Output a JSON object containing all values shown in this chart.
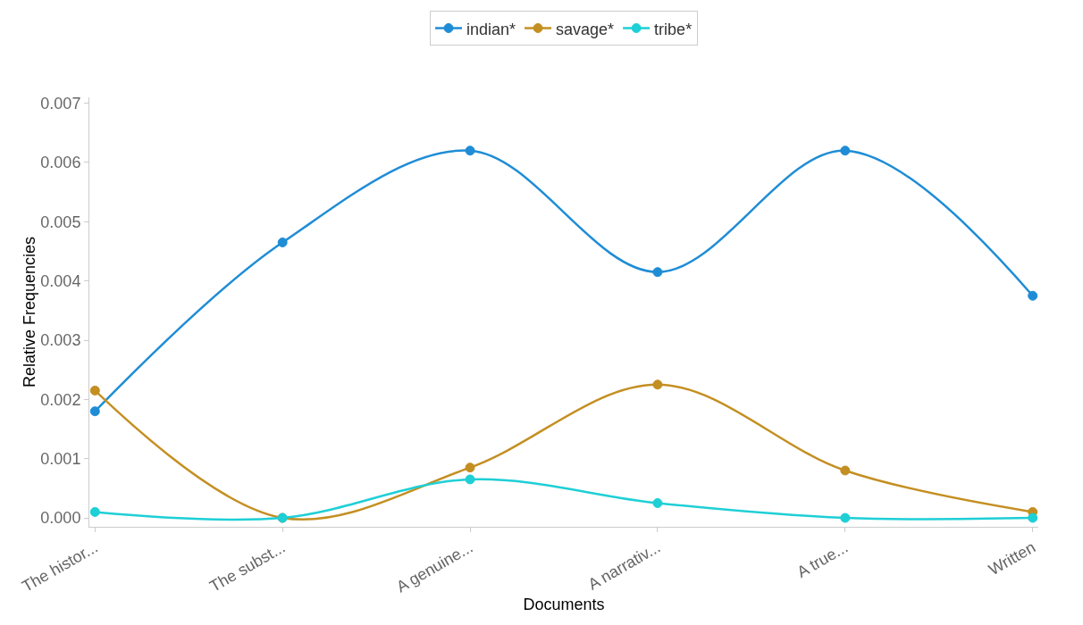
{
  "chart_data": {
    "type": "line",
    "xlabel": "Documents",
    "ylabel": "Relative Frequencies",
    "categories": [
      "The histor...",
      "The subst...",
      "A genuine...",
      "A narrativ...",
      "A true...",
      "Written"
    ],
    "series": [
      {
        "name": "indian*",
        "color": "#1f8dd6",
        "values": [
          0.0018,
          0.00465,
          0.0062,
          0.00415,
          0.0062,
          0.00375
        ]
      },
      {
        "name": "savage*",
        "color": "#c48f22",
        "values": [
          0.00215,
          0.0,
          0.00085,
          0.00225,
          0.0008,
          0.0001
        ]
      },
      {
        "name": "tribe*",
        "color": "#1ecfd6",
        "values": [
          0.0001,
          0.0,
          0.00065,
          0.00025,
          0.0,
          0.0
        ]
      }
    ],
    "ylim": [
      -0.00015,
      0.0071
    ],
    "yticks": [
      {
        "value": 0,
        "label": "0.000"
      },
      {
        "value": 0.001,
        "label": "0.001"
      },
      {
        "value": 0.002,
        "label": "0.002"
      },
      {
        "value": 0.003,
        "label": "0.003"
      },
      {
        "value": 0.004,
        "label": "0.004"
      },
      {
        "value": 0.005,
        "label": "0.005"
      },
      {
        "value": 0.006,
        "label": "0.006"
      },
      {
        "value": 0.007,
        "label": "0.007"
      }
    ],
    "grid": false,
    "legend": "top",
    "marker": "circle",
    "line_style": "solid"
  }
}
